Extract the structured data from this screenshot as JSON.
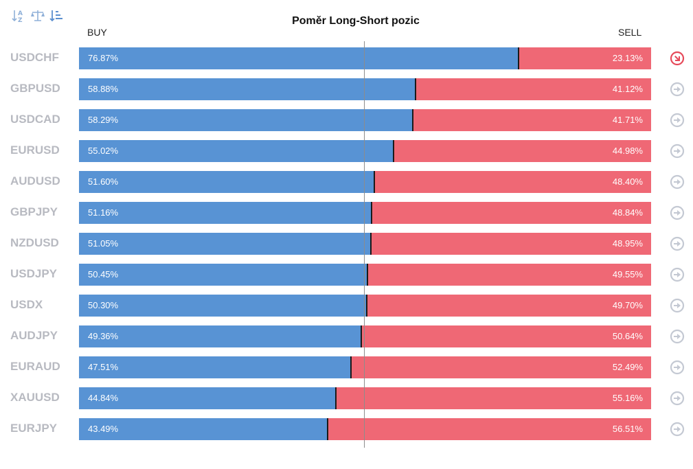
{
  "toolbar": {
    "icons": [
      "sort-alpha-icon",
      "balance-scale-icon",
      "sort-amount-icon"
    ]
  },
  "chart_data": {
    "type": "bar",
    "stacked": true,
    "orientation": "horizontal",
    "title": "Poměr Long-Short pozic",
    "left_label": "BUY",
    "right_label": "SELL",
    "categories": [
      "USDCHF",
      "GBPUSD",
      "USDCAD",
      "EURUSD",
      "AUDUSD",
      "GBPJPY",
      "NZDUSD",
      "USDJPY",
      "USDX",
      "AUDJPY",
      "EURAUD",
      "XAUUSD",
      "EURJPY"
    ],
    "series": [
      {
        "name": "BUY",
        "values": [
          76.87,
          58.88,
          58.29,
          55.02,
          51.6,
          51.16,
          51.05,
          50.45,
          50.3,
          49.36,
          47.51,
          44.84,
          43.49
        ],
        "labels": [
          "76.87%",
          "58.88%",
          "58.29%",
          "55.02%",
          "51.60%",
          "51.16%",
          "51.05%",
          "50.45%",
          "50.30%",
          "49.36%",
          "47.51%",
          "44.84%",
          "43.49%"
        ],
        "color": "#5893d4"
      },
      {
        "name": "SELL",
        "values": [
          23.13,
          41.12,
          41.71,
          44.98,
          48.4,
          48.84,
          48.95,
          49.55,
          49.7,
          50.64,
          52.49,
          55.16,
          56.51
        ],
        "labels": [
          "23.13%",
          "41.12%",
          "41.71%",
          "44.98%",
          "48.40%",
          "48.84%",
          "48.95%",
          "49.55%",
          "49.70%",
          "50.64%",
          "52.49%",
          "55.16%",
          "56.51%"
        ],
        "color": "#ef6875"
      }
    ],
    "xlim": [
      0,
      100
    ],
    "reference_line": 50,
    "row_icons": [
      "arrow-down-right-icon",
      "arrow-right-icon",
      "arrow-right-icon",
      "arrow-right-icon",
      "arrow-right-icon",
      "arrow-right-icon",
      "arrow-right-icon",
      "arrow-right-icon",
      "arrow-right-icon",
      "arrow-right-icon",
      "arrow-right-icon",
      "arrow-right-icon",
      "arrow-right-icon"
    ],
    "icon_colors": {
      "active": "#e64a5a",
      "neutral": "#c4c9d3"
    }
  }
}
